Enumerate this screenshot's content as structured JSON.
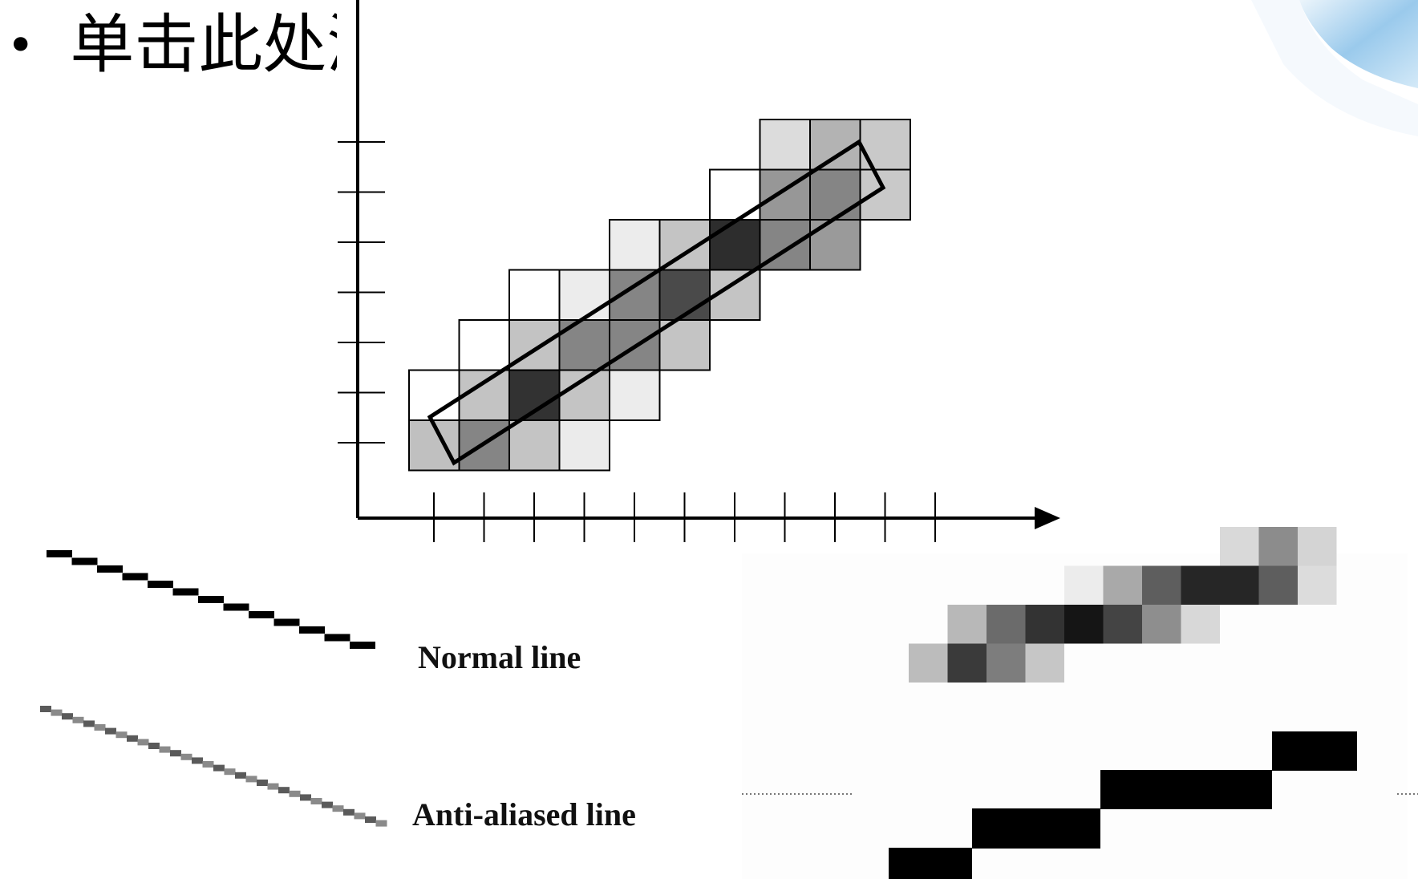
{
  "slide": {
    "title_bullet": "•",
    "title_text": "单击此处添加文本"
  },
  "labels": {
    "normal_line": "Normal line",
    "anti_aliased_line": "Anti-aliased line"
  },
  "colors": {
    "decor_blue": "#4fa3e3",
    "axis": "#000000",
    "background": "#ffffff"
  },
  "diagram": {
    "grid_cells": [
      {
        "col": 0,
        "row": 0,
        "shade": "#c0c0c0"
      },
      {
        "col": 1,
        "row": 0,
        "shade": "#858585"
      },
      {
        "col": 2,
        "row": 0,
        "shade": "#c4c4c4"
      },
      {
        "col": 3,
        "row": 0,
        "shade": "#ebebeb"
      },
      {
        "col": 0,
        "row": 1,
        "shade": "#ffffff"
      },
      {
        "col": 1,
        "row": 1,
        "shade": "#c3c3c3"
      },
      {
        "col": 2,
        "row": 1,
        "shade": "#323232"
      },
      {
        "col": 3,
        "row": 1,
        "shade": "#c4c4c4"
      },
      {
        "col": 4,
        "row": 1,
        "shade": "#ececec"
      },
      {
        "col": 1,
        "row": 2,
        "shade": "#ffffff"
      },
      {
        "col": 2,
        "row": 2,
        "shade": "#c3c3c3"
      },
      {
        "col": 3,
        "row": 2,
        "shade": "#858585"
      },
      {
        "col": 4,
        "row": 2,
        "shade": "#858585"
      },
      {
        "col": 5,
        "row": 2,
        "shade": "#c4c4c4"
      },
      {
        "col": 2,
        "row": 3,
        "shade": "#ffffff"
      },
      {
        "col": 3,
        "row": 3,
        "shade": "#ececec"
      },
      {
        "col": 4,
        "row": 3,
        "shade": "#858585"
      },
      {
        "col": 5,
        "row": 3,
        "shade": "#4a4a4a"
      },
      {
        "col": 6,
        "row": 3,
        "shade": "#c4c4c4"
      },
      {
        "col": 4,
        "row": 4,
        "shade": "#ececec"
      },
      {
        "col": 5,
        "row": 4,
        "shade": "#c4c4c4"
      },
      {
        "col": 6,
        "row": 4,
        "shade": "#2d2d2d"
      },
      {
        "col": 7,
        "row": 4,
        "shade": "#858585"
      },
      {
        "col": 8,
        "row": 4,
        "shade": "#9a9a9a"
      },
      {
        "col": 6,
        "row": 5,
        "shade": "#ffffff"
      },
      {
        "col": 7,
        "row": 5,
        "shade": "#979797"
      },
      {
        "col": 8,
        "row": 5,
        "shade": "#858585"
      },
      {
        "col": 9,
        "row": 5,
        "shade": "#c9c9c9"
      },
      {
        "col": 7,
        "row": 6,
        "shade": "#dcdcdc"
      },
      {
        "col": 8,
        "row": 6,
        "shade": "#b3b3b3"
      },
      {
        "col": 9,
        "row": 6,
        "shade": "#c9c9c9"
      }
    ],
    "x_tick_count": 11,
    "y_tick_count": 7
  },
  "zoomed_antialiased": [
    {
      "col": 8,
      "row": 0,
      "shade": "#d9d9d9"
    },
    {
      "col": 9,
      "row": 0,
      "shade": "#8c8c8c"
    },
    {
      "col": 10,
      "row": 0,
      "shade": "#d4d4d4"
    },
    {
      "col": 4,
      "row": 1,
      "shade": "#ececec"
    },
    {
      "col": 5,
      "row": 1,
      "shade": "#a9a9a9"
    },
    {
      "col": 6,
      "row": 1,
      "shade": "#5e5e5e"
    },
    {
      "col": 7,
      "row": 1,
      "shade": "#262626"
    },
    {
      "col": 8,
      "row": 1,
      "shade": "#262626"
    },
    {
      "col": 9,
      "row": 1,
      "shade": "#5e5e5e"
    },
    {
      "col": 10,
      "row": 1,
      "shade": "#dcdcdc"
    },
    {
      "col": 1,
      "row": 2,
      "shade": "#b8b8b8"
    },
    {
      "col": 2,
      "row": 2,
      "shade": "#6b6b6b"
    },
    {
      "col": 3,
      "row": 2,
      "shade": "#333333"
    },
    {
      "col": 4,
      "row": 2,
      "shade": "#151515"
    },
    {
      "col": 5,
      "row": 2,
      "shade": "#444444"
    },
    {
      "col": 6,
      "row": 2,
      "shade": "#8e8e8e"
    },
    {
      "col": 7,
      "row": 2,
      "shade": "#d8d8d8"
    },
    {
      "col": 0,
      "row": 3,
      "shade": "#bcbcbc"
    },
    {
      "col": 1,
      "row": 3,
      "shade": "#3a3a3a"
    },
    {
      "col": 2,
      "row": 3,
      "shade": "#7d7d7d"
    },
    {
      "col": 3,
      "row": 3,
      "shade": "#c6c6c6"
    }
  ]
}
